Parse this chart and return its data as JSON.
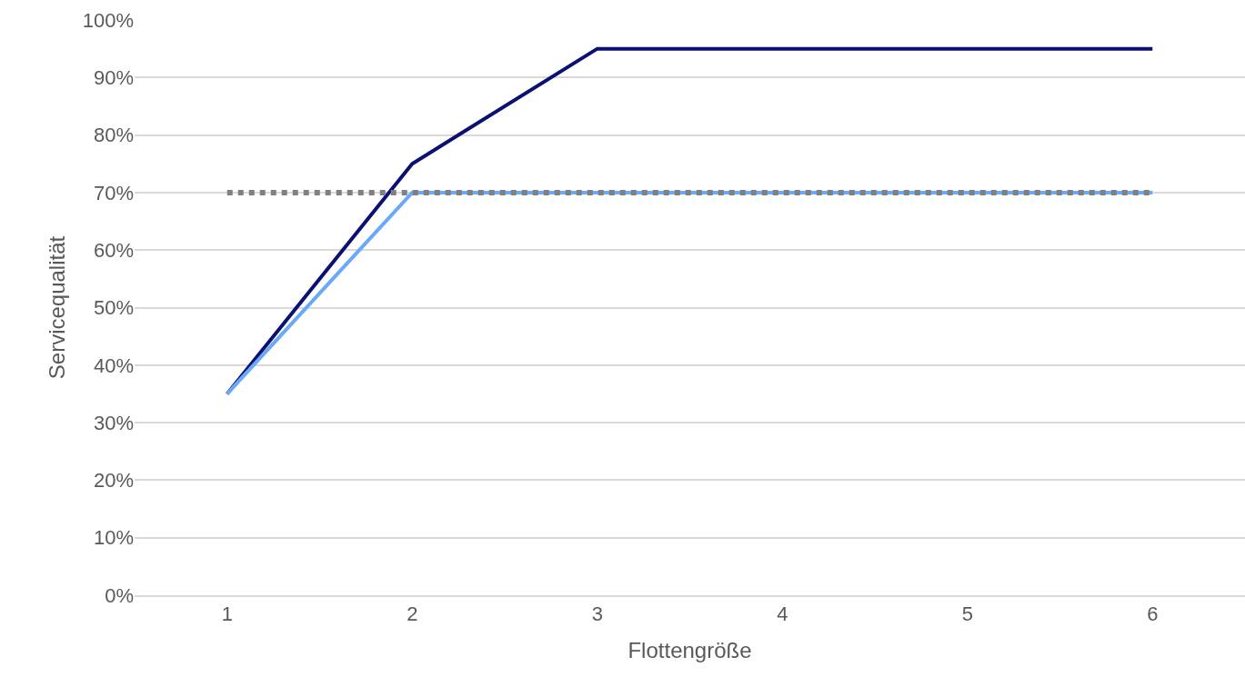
{
  "chart_data": {
    "type": "line",
    "xlabel": "Flottengröße",
    "ylabel": "Servicequalität",
    "categories": [
      "1",
      "2",
      "3",
      "4",
      "5",
      "6"
    ],
    "series": [
      {
        "color": "#0a1172",
        "values": [
          35,
          75,
          95,
          95,
          95,
          95
        ]
      },
      {
        "color": "#6aa9f8",
        "values": [
          35,
          70,
          70,
          70,
          70,
          70
        ]
      },
      {
        "color": "#808080",
        "values": [
          70,
          70,
          70,
          70,
          70,
          70
        ],
        "line_style": "dotted"
      }
    ],
    "ylim": [
      0,
      100
    ],
    "yticks": [
      {
        "value": 0,
        "label": "0%"
      },
      {
        "value": 10,
        "label": "10%"
      },
      {
        "value": 20,
        "label": "20%"
      },
      {
        "value": 30,
        "label": "30%"
      },
      {
        "value": 40,
        "label": "40%"
      },
      {
        "value": 50,
        "label": "50%"
      },
      {
        "value": 60,
        "label": "60%"
      },
      {
        "value": 70,
        "label": "70%"
      },
      {
        "value": 80,
        "label": "80%"
      },
      {
        "value": 90,
        "label": "90%"
      },
      {
        "value": 100,
        "label": "100%"
      }
    ],
    "grid": "y",
    "marker": "none",
    "line_style": "solid"
  }
}
